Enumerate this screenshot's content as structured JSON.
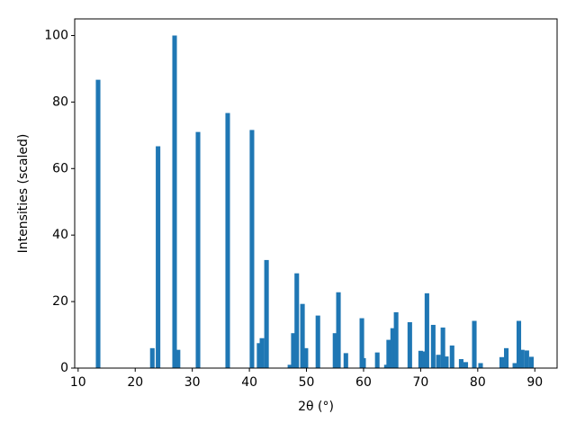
{
  "chart_data": {
    "type": "bar",
    "xlabel": "2θ (°)",
    "ylabel": "Intensities (scaled)",
    "color": "#1f77b4",
    "x": [
      13.5,
      23.0,
      24.0,
      26.9,
      27.5,
      31.0,
      36.2,
      40.45,
      41.7,
      42.2,
      43.0,
      47.1,
      47.7,
      48.3,
      49.3,
      49.9,
      52.0,
      55.0,
      55.6,
      56.9,
      59.7,
      60.0,
      62.4,
      64.0,
      64.4,
      65.1,
      65.7,
      68.1,
      70.0,
      70.6,
      71.1,
      72.2,
      73.1,
      73.9,
      74.5,
      75.5,
      77.1,
      77.9,
      79.4,
      80.5,
      84.2,
      85.0,
      86.5,
      87.2,
      87.8,
      88.6,
      89.4
    ],
    "values": [
      86.7,
      6,
      66.7,
      100,
      5.5,
      71,
      76.7,
      71.6,
      7.5,
      9,
      32.5,
      1,
      10.5,
      28.5,
      19.3,
      6,
      15.8,
      10.5,
      22.8,
      4.5,
      15,
      3,
      4.7,
      1,
      8.5,
      12,
      16.8,
      13.8,
      5.2,
      5,
      22.5,
      13,
      4,
      12.2,
      3.5,
      6.8,
      2.7,
      1.8,
      14.2,
      1.5,
      3.3,
      6,
      1.5,
      14.2,
      5.5,
      5.3,
      3.4
    ],
    "xlim": [
      9.4,
      93.9
    ],
    "xticks": [
      10,
      20,
      30,
      40,
      50,
      60,
      70,
      80,
      90
    ],
    "ylim": [
      0,
      105
    ],
    "yticks": [
      0,
      20,
      40,
      60,
      80,
      100
    ]
  }
}
